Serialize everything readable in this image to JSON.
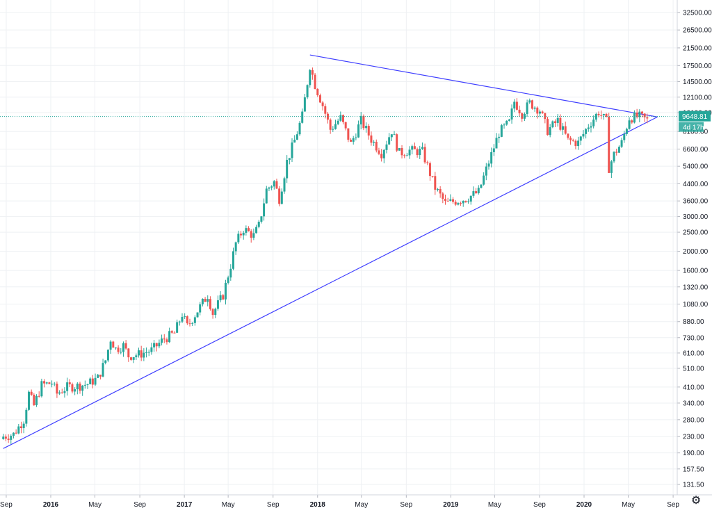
{
  "chart_data": {
    "type": "candlestick",
    "title": "",
    "y_scale": "log",
    "grid": true,
    "colors": {
      "up": "#26a69a",
      "down": "#ef5350",
      "trendline": "#3f3fff",
      "price_line": "#26a69a",
      "grid": "#eef0f3",
      "axis": "#d1d4dc"
    },
    "y_ticks": [
      "32500.00",
      "26500.00",
      "21500.00",
      "17500.00",
      "14500.00",
      "12100.00",
      "10100.00",
      "8100.00",
      "6600.00",
      "5400.00",
      "4400.00",
      "3600.00",
      "3000.00",
      "2500.00",
      "2000.00",
      "1600.00",
      "1320.00",
      "1080.00",
      "880.00",
      "730.00",
      "610.00",
      "510.00",
      "410.00",
      "340.00",
      "280.00",
      "230.00",
      "190.00",
      "157.50",
      "131.50"
    ],
    "x_ticks": [
      {
        "label": "Sep",
        "date": "2015-09-01",
        "bold": false
      },
      {
        "label": "2016",
        "date": "2016-01-01",
        "bold": true
      },
      {
        "label": "May",
        "date": "2016-05-01",
        "bold": false
      },
      {
        "label": "Sep",
        "date": "2016-09-01",
        "bold": false
      },
      {
        "label": "2017",
        "date": "2017-01-01",
        "bold": true
      },
      {
        "label": "May",
        "date": "2017-05-01",
        "bold": false
      },
      {
        "label": "Sep",
        "date": "2017-09-01",
        "bold": false
      },
      {
        "label": "2018",
        "date": "2018-01-01",
        "bold": true
      },
      {
        "label": "May",
        "date": "2018-05-01",
        "bold": false
      },
      {
        "label": "Sep",
        "date": "2018-09-01",
        "bold": false
      },
      {
        "label": "2019",
        "date": "2019-01-01",
        "bold": true
      },
      {
        "label": "May",
        "date": "2019-05-01",
        "bold": false
      },
      {
        "label": "Sep",
        "date": "2019-09-01",
        "bold": false
      },
      {
        "label": "2020",
        "date": "2020-01-01",
        "bold": true
      },
      {
        "label": "May",
        "date": "2020-05-01",
        "bold": false
      },
      {
        "label": "Sep",
        "date": "2020-09-01",
        "bold": false
      }
    ],
    "series": [
      {
        "date": "2015-08-24",
        "close": 230
      },
      {
        "date": "2015-09-21",
        "close": 236
      },
      {
        "date": "2015-10-19",
        "close": 280
      },
      {
        "date": "2015-11-02",
        "close": 380
      },
      {
        "date": "2015-11-16",
        "close": 330
      },
      {
        "date": "2015-12-07",
        "close": 420
      },
      {
        "date": "2016-01-04",
        "close": 430
      },
      {
        "date": "2016-01-18",
        "close": 380
      },
      {
        "date": "2016-02-15",
        "close": 410
      },
      {
        "date": "2016-03-14",
        "close": 415
      },
      {
        "date": "2016-04-11",
        "close": 425
      },
      {
        "date": "2016-05-09",
        "close": 455
      },
      {
        "date": "2016-05-30",
        "close": 560
      },
      {
        "date": "2016-06-13",
        "close": 720
      },
      {
        "date": "2016-06-27",
        "close": 640
      },
      {
        "date": "2016-07-18",
        "close": 665
      },
      {
        "date": "2016-08-01",
        "close": 590
      },
      {
        "date": "2016-08-29",
        "close": 600
      },
      {
        "date": "2016-10-03",
        "close": 630
      },
      {
        "date": "2016-11-07",
        "close": 720
      },
      {
        "date": "2016-12-05",
        "close": 770
      },
      {
        "date": "2016-12-26",
        "close": 960
      },
      {
        "date": "2017-01-09",
        "close": 830
      },
      {
        "date": "2017-02-06",
        "close": 1000
      },
      {
        "date": "2017-03-06",
        "close": 1200
      },
      {
        "date": "2017-03-20",
        "close": 970
      },
      {
        "date": "2017-04-17",
        "close": 1200
      },
      {
        "date": "2017-05-08",
        "close": 1700
      },
      {
        "date": "2017-05-22",
        "close": 2200
      },
      {
        "date": "2017-06-12",
        "close": 2600
      },
      {
        "date": "2017-07-10",
        "close": 2400
      },
      {
        "date": "2017-07-24",
        "close": 2700
      },
      {
        "date": "2017-08-14",
        "close": 4100
      },
      {
        "date": "2017-09-04",
        "close": 4500
      },
      {
        "date": "2017-09-18",
        "close": 3700
      },
      {
        "date": "2017-10-09",
        "close": 5700
      },
      {
        "date": "2017-10-30",
        "close": 7300
      },
      {
        "date": "2017-11-20",
        "close": 9700
      },
      {
        "date": "2017-12-11",
        "close": 17500
      },
      {
        "date": "2017-12-25",
        "close": 14000
      },
      {
        "date": "2018-01-15",
        "close": 11000
      },
      {
        "date": "2018-02-05",
        "close": 8300
      },
      {
        "date": "2018-03-05",
        "close": 9500
      },
      {
        "date": "2018-04-02",
        "close": 7000
      },
      {
        "date": "2018-04-30",
        "close": 9200
      },
      {
        "date": "2018-05-28",
        "close": 7400
      },
      {
        "date": "2018-06-25",
        "close": 6300
      },
      {
        "date": "2018-07-23",
        "close": 8200
      },
      {
        "date": "2018-08-13",
        "close": 6300
      },
      {
        "date": "2018-09-10",
        "close": 6500
      },
      {
        "date": "2018-10-15",
        "close": 6400
      },
      {
        "date": "2018-11-19",
        "close": 4200
      },
      {
        "date": "2018-12-17",
        "close": 3500
      },
      {
        "date": "2019-01-14",
        "close": 3600
      },
      {
        "date": "2019-02-11",
        "close": 3700
      },
      {
        "date": "2019-03-18",
        "close": 4000
      },
      {
        "date": "2019-04-08",
        "close": 5200
      },
      {
        "date": "2019-05-13",
        "close": 8000
      },
      {
        "date": "2019-06-10",
        "close": 9000
      },
      {
        "date": "2019-06-24",
        "close": 11500
      },
      {
        "date": "2019-07-15",
        "close": 10000
      },
      {
        "date": "2019-08-05",
        "close": 11300
      },
      {
        "date": "2019-09-02",
        "close": 10400
      },
      {
        "date": "2019-09-23",
        "close": 8200
      },
      {
        "date": "2019-10-21",
        "close": 9200
      },
      {
        "date": "2019-11-18",
        "close": 7300
      },
      {
        "date": "2019-12-16",
        "close": 7100
      },
      {
        "date": "2020-01-13",
        "close": 8700
      },
      {
        "date": "2020-02-10",
        "close": 10200
      },
      {
        "date": "2020-03-02",
        "close": 9100
      },
      {
        "date": "2020-03-09",
        "close": 5300
      },
      {
        "date": "2020-03-23",
        "close": 6200
      },
      {
        "date": "2020-04-13",
        "close": 7100
      },
      {
        "date": "2020-05-04",
        "close": 9500
      },
      {
        "date": "2020-06-01",
        "close": 9650
      },
      {
        "date": "2020-06-29",
        "close": 9100
      },
      {
        "date": "2020-07-13",
        "close": 9648.81
      }
    ],
    "trendlines": [
      {
        "name": "upper",
        "points": [
          {
            "date": "2017-12-11",
            "price": 19800
          },
          {
            "date": "2020-07-20",
            "price": 9600
          }
        ]
      },
      {
        "name": "lower",
        "points": [
          {
            "date": "2015-08-24",
            "price": 200
          },
          {
            "date": "2020-07-20",
            "price": 9600
          }
        ]
      }
    ],
    "last_price": {
      "value": 9648.81,
      "label": "9648.81",
      "countdown": "4d 17h"
    }
  },
  "ui": {
    "settings_icon": "gear-icon"
  }
}
